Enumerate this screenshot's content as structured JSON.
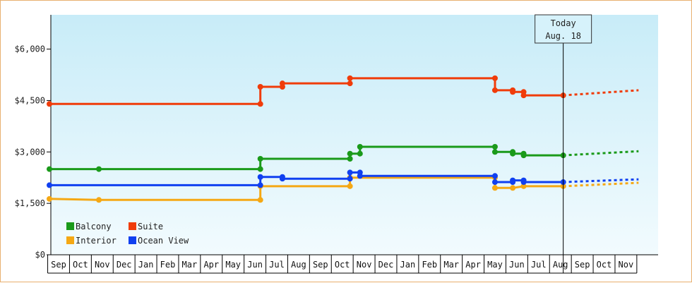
{
  "colors": {
    "Balcony": "#1a9a1a",
    "Suite": "#f03c0a",
    "Interior": "#f5a814",
    "Ocean View": "#1040f0",
    "plot_bg_top": "#c8ecf8",
    "plot_bg_bottom": "#f2fbfe",
    "frame_border": "#e8b070"
  },
  "chart_data": {
    "type": "line",
    "step": true,
    "title": "",
    "xlabel": "",
    "ylabel": "",
    "ylim": [
      0,
      7000
    ],
    "y_ticks": [
      {
        "value": 0,
        "label": "$0"
      },
      {
        "value": 1500,
        "label": "$1,500"
      },
      {
        "value": 3000,
        "label": "$3,000"
      },
      {
        "value": 4500,
        "label": "$4,500"
      },
      {
        "value": 6000,
        "label": "$6,000"
      }
    ],
    "x_months": [
      "Sep",
      "Oct",
      "Nov",
      "Dec",
      "Jan",
      "Feb",
      "Mar",
      "Apr",
      "May",
      "Jun",
      "Jul",
      "Aug",
      "Sep",
      "Oct",
      "Nov",
      "Dec",
      "Jan",
      "Feb",
      "Mar",
      "Apr",
      "May",
      "Jun",
      "Jul",
      "Aug",
      "Sep",
      "Oct",
      "Nov"
    ],
    "xlim": [
      "2017-09-01",
      "2019-12-01"
    ],
    "grid": false,
    "legend_position": "bottom-left",
    "today": {
      "line1": "Today",
      "line2": "Aug. 18",
      "date": "2019-08-18"
    },
    "series": [
      {
        "name": "Balcony",
        "points": [
          [
            "2017-09-01",
            2500
          ],
          [
            "2017-11-09",
            2500
          ],
          [
            "2018-06-21",
            2500
          ],
          [
            "2018-06-21",
            2800
          ],
          [
            "2018-10-25",
            2800
          ],
          [
            "2018-10-25",
            2950
          ],
          [
            "2018-11-08",
            2950
          ],
          [
            "2018-11-08",
            3150
          ],
          [
            "2019-05-14",
            3150
          ],
          [
            "2019-05-14",
            3000
          ],
          [
            "2019-06-08",
            3000
          ],
          [
            "2019-06-08",
            2950
          ],
          [
            "2019-06-23",
            2950
          ],
          [
            "2019-06-23",
            2900
          ],
          [
            "2019-08-18",
            2900
          ]
        ],
        "projection": [
          [
            "2019-08-18",
            2900
          ],
          [
            "2019-12-01",
            3020
          ]
        ]
      },
      {
        "name": "Suite",
        "points": [
          [
            "2017-09-01",
            4400
          ],
          [
            "2018-06-21",
            4400
          ],
          [
            "2018-06-21",
            4900
          ],
          [
            "2018-07-22",
            4900
          ],
          [
            "2018-07-22",
            5000
          ],
          [
            "2018-10-25",
            5000
          ],
          [
            "2018-10-25",
            5150
          ],
          [
            "2019-05-14",
            5150
          ],
          [
            "2019-05-14",
            4800
          ],
          [
            "2019-06-08",
            4800
          ],
          [
            "2019-06-08",
            4750
          ],
          [
            "2019-06-23",
            4750
          ],
          [
            "2019-06-23",
            4650
          ],
          [
            "2019-08-18",
            4650
          ]
        ],
        "projection": [
          [
            "2019-08-18",
            4650
          ],
          [
            "2019-12-01",
            4800
          ]
        ]
      },
      {
        "name": "Interior",
        "points": [
          [
            "2017-09-01",
            1630
          ],
          [
            "2017-11-09",
            1600
          ],
          [
            "2018-06-21",
            1600
          ],
          [
            "2018-06-21",
            2000
          ],
          [
            "2018-10-25",
            2000
          ],
          [
            "2018-10-25",
            2250
          ],
          [
            "2019-05-14",
            2250
          ],
          [
            "2019-05-14",
            1950
          ],
          [
            "2019-06-08",
            1950
          ],
          [
            "2019-06-23",
            2000
          ],
          [
            "2019-08-18",
            2000
          ]
        ],
        "projection": [
          [
            "2019-08-18",
            2000
          ],
          [
            "2019-12-01",
            2100
          ]
        ]
      },
      {
        "name": "Ocean View",
        "points": [
          [
            "2017-09-01",
            2030
          ],
          [
            "2018-06-21",
            2030
          ],
          [
            "2018-06-21",
            2270
          ],
          [
            "2018-07-22",
            2270
          ],
          [
            "2018-07-22",
            2220
          ],
          [
            "2018-10-25",
            2220
          ],
          [
            "2018-10-25",
            2400
          ],
          [
            "2018-11-08",
            2400
          ],
          [
            "2018-11-08",
            2300
          ],
          [
            "2019-05-14",
            2300
          ],
          [
            "2019-05-14",
            2120
          ],
          [
            "2019-06-08",
            2120
          ],
          [
            "2019-06-08",
            2170
          ],
          [
            "2019-06-23",
            2170
          ],
          [
            "2019-06-23",
            2120
          ],
          [
            "2019-08-18",
            2120
          ]
        ],
        "projection": [
          [
            "2019-08-18",
            2120
          ],
          [
            "2019-12-01",
            2200
          ]
        ]
      }
    ],
    "legend": [
      {
        "name": "Balcony"
      },
      {
        "name": "Suite"
      },
      {
        "name": "Interior"
      },
      {
        "name": "Ocean View"
      }
    ]
  }
}
